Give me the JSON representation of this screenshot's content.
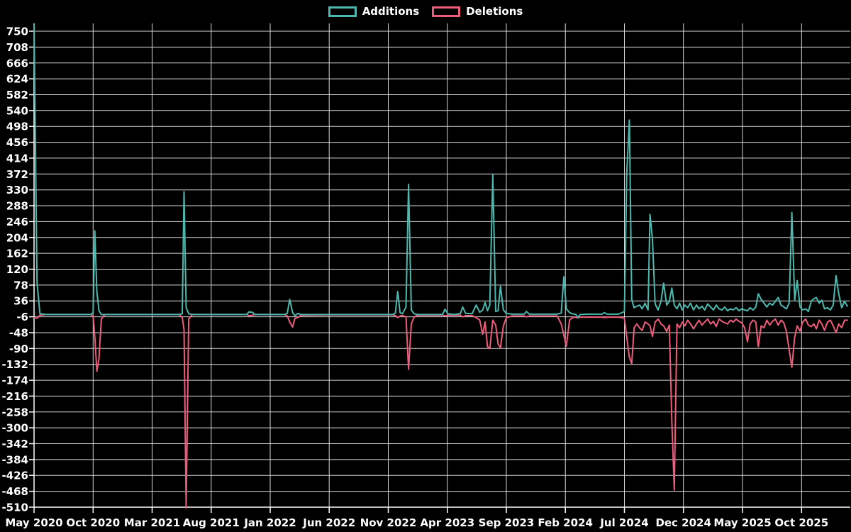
{
  "colors": {
    "background": "#000000",
    "grid": "#d9d9d9",
    "axis": "#ffffff",
    "text": "#ffffff",
    "additions": "#4cb8ae",
    "deletions": "#ee5c7c"
  },
  "chart_data": {
    "type": "line",
    "title": "",
    "xlabel": "",
    "ylabel": "",
    "grid": true,
    "legend_position": "top-center",
    "x_unit": "months since May 2020",
    "x_axis": {
      "tick_labels": [
        "May 2020",
        "Oct 2020",
        "Mar 2021",
        "Aug 2021",
        "Jan 2022",
        "Jun 2022",
        "Nov 2022",
        "Apr 2023",
        "Sep 2023",
        "Feb 2024",
        "Jul 2024",
        "Dec 2024",
        "May 2025",
        "Oct 2025"
      ],
      "tick_positions": [
        0,
        5,
        10,
        15,
        20,
        25,
        30,
        35,
        40,
        45,
        50,
        55,
        60,
        65
      ]
    },
    "y_axis": {
      "min": -510,
      "max": 750,
      "tick_step": 42,
      "ticks": [
        750,
        708,
        666,
        624,
        582,
        540,
        498,
        456,
        414,
        372,
        330,
        288,
        246,
        204,
        162,
        120,
        78,
        36,
        -6,
        -48,
        -90,
        -132,
        -174,
        -216,
        -258,
        -300,
        -342,
        -384,
        -426,
        -468,
        -510
      ]
    },
    "x": [
      0,
      0.25,
      0.5,
      1,
      4.8,
      5.0,
      5.15,
      5.32,
      5.5,
      5.7,
      6.0,
      8,
      12.3,
      12.55,
      12.7,
      12.88,
      13.1,
      13.4,
      16,
      18.0,
      18.2,
      18.5,
      18.7,
      21.2,
      21.45,
      21.65,
      21.9,
      22.1,
      22.35,
      22.6,
      25,
      28,
      30.4,
      30.6,
      30.8,
      31.0,
      31.2,
      31.5,
      31.72,
      31.95,
      32.2,
      32.5,
      33.5,
      34.6,
      34.8,
      35.05,
      35.5,
      36.1,
      36.3,
      36.55,
      37.1,
      37.45,
      37.75,
      38.0,
      38.2,
      38.4,
      38.6,
      38.85,
      39.1,
      39.3,
      39.5,
      39.75,
      40.0,
      40.5,
      41.5,
      41.7,
      41.95,
      43,
      44.3,
      44.65,
      44.87,
      45.08,
      45.35,
      45.6,
      45.9,
      46.05,
      46.25,
      47,
      48.1,
      48.3,
      48.55,
      49.5,
      50.0,
      50.2,
      50.42,
      50.62,
      50.82,
      51.05,
      51.3,
      51.5,
      51.75,
      52.0,
      52.17,
      52.37,
      52.6,
      52.85,
      53.1,
      53.32,
      53.58,
      53.8,
      54.02,
      54.22,
      54.45,
      54.67,
      54.9,
      55.12,
      55.36,
      55.6,
      55.85,
      56.1,
      56.32,
      56.57,
      56.8,
      57.05,
      57.3,
      57.54,
      57.78,
      58.02,
      58.26,
      58.5,
      58.74,
      58.98,
      59.22,
      59.46,
      59.7,
      59.94,
      60.18,
      60.42,
      60.65,
      60.89,
      61.13,
      61.34,
      61.58,
      61.82,
      62.06,
      62.3,
      62.54,
      62.78,
      63.02,
      63.26,
      63.5,
      63.72,
      63.95,
      64.18,
      64.42,
      64.63,
      64.87,
      65.1,
      65.35,
      65.58,
      65.82,
      66.05,
      66.25,
      66.5,
      66.72,
      66.95,
      67.2,
      67.45,
      67.68,
      67.92,
      68.15,
      68.4,
      68.64,
      68.88
    ],
    "series": [
      {
        "name": "Additions",
        "color": "#4cb8ae",
        "values": [
          770,
          85,
          2,
          0,
          0,
          5,
          222,
          60,
          10,
          0,
          0,
          0,
          0,
          2,
          325,
          18,
          2,
          0,
          0,
          0,
          7,
          6,
          0,
          0,
          3,
          40,
          5,
          -3,
          3,
          0,
          0,
          0,
          0,
          4,
          61,
          5,
          2,
          20,
          345,
          12,
          2,
          0,
          0,
          0,
          14,
          2,
          0,
          2,
          20,
          3,
          2,
          25,
          6,
          12,
          32,
          10,
          25,
          370,
          8,
          10,
          75,
          12,
          3,
          1,
          1,
          8,
          1,
          1,
          1,
          4,
          100,
          15,
          5,
          2,
          0,
          -8,
          0,
          1,
          1,
          5,
          1,
          1,
          8,
          375,
          515,
          40,
          18,
          22,
          25,
          15,
          30,
          12,
          265,
          200,
          28,
          12,
          35,
          83,
          25,
          35,
          70,
          25,
          15,
          30,
          12,
          25,
          18,
          30,
          12,
          25,
          15,
          22,
          12,
          28,
          20,
          12,
          25,
          15,
          12,
          20,
          10,
          15,
          12,
          18,
          10,
          15,
          12,
          10,
          18,
          12,
          20,
          55,
          40,
          30,
          20,
          30,
          25,
          35,
          45,
          25,
          20,
          15,
          30,
          270,
          38,
          90,
          20,
          12,
          15,
          8,
          35,
          42,
          45,
          30,
          38,
          15,
          18,
          12,
          25,
          103,
          55,
          18,
          35,
          22
        ]
      },
      {
        "name": "Deletions",
        "color": "#ee5c7c",
        "values": [
          -8,
          -10,
          -2,
          0,
          0,
          -4,
          -60,
          -150,
          -115,
          -12,
          0,
          0,
          0,
          -8,
          -40,
          -512,
          -12,
          0,
          0,
          0,
          -3,
          -2,
          0,
          0,
          -4,
          -20,
          -33,
          -10,
          -8,
          -2,
          -1,
          -1,
          -1,
          -3,
          -8,
          -4,
          -3,
          -6,
          -145,
          -25,
          -6,
          -2,
          -2,
          -2,
          -4,
          -2,
          -2,
          -2,
          -6,
          -3,
          -3,
          -8,
          -15,
          -52,
          -20,
          -85,
          -90,
          -15,
          -28,
          -78,
          -88,
          -30,
          -8,
          -4,
          -4,
          -6,
          -4,
          -4,
          -4,
          -25,
          -55,
          -84,
          -15,
          -8,
          -7,
          -9,
          -7,
          -7,
          -7,
          -8,
          -7,
          -7,
          -10,
          -60,
          -113,
          -130,
          -35,
          -25,
          -36,
          -42,
          -20,
          -25,
          -30,
          -58,
          -20,
          -12,
          -25,
          -30,
          -45,
          -28,
          -285,
          -465,
          -25,
          -35,
          -20,
          -30,
          -15,
          -25,
          -38,
          -25,
          -15,
          -28,
          -20,
          -12,
          -25,
          -18,
          -32,
          -12,
          -18,
          -22,
          -25,
          -15,
          -20,
          -12,
          -18,
          -22,
          -35,
          -72,
          -25,
          -15,
          -20,
          -85,
          -30,
          -35,
          -15,
          -28,
          -18,
          -12,
          -28,
          -15,
          -22,
          -45,
          -93,
          -140,
          -60,
          -30,
          -44,
          -20,
          -12,
          -28,
          -32,
          -25,
          -38,
          -15,
          -25,
          -42,
          -20,
          -15,
          -30,
          -48,
          -25,
          -35,
          -15,
          -15
        ]
      }
    ]
  }
}
